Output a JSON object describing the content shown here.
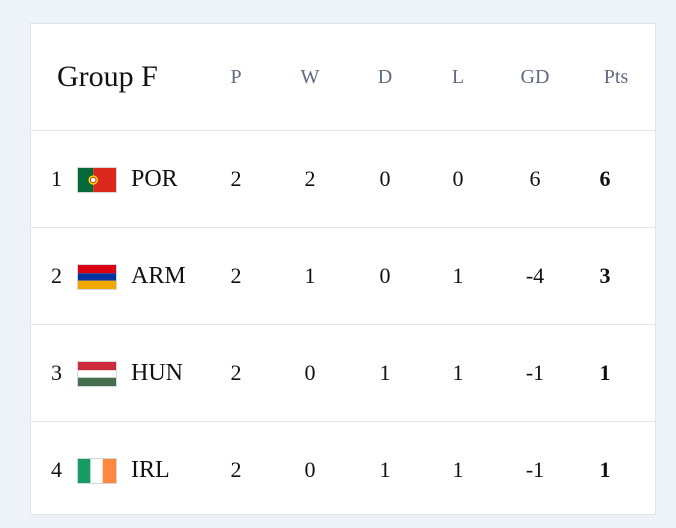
{
  "table": {
    "title": "Group F",
    "columns": [
      "P",
      "W",
      "D",
      "L",
      "GD",
      "Pts"
    ],
    "rows": [
      {
        "pos": "1",
        "flag_icon": "portugal-flag-icon",
        "team": "POR",
        "p": "2",
        "w": "2",
        "d": "0",
        "l": "0",
        "gd": "6",
        "pts": "6"
      },
      {
        "pos": "2",
        "flag_icon": "armenia-flag-icon",
        "team": "ARM",
        "p": "2",
        "w": "1",
        "d": "0",
        "l": "1",
        "gd": "-4",
        "pts": "3"
      },
      {
        "pos": "3",
        "flag_icon": "hungary-flag-icon",
        "team": "HUN",
        "p": "2",
        "w": "0",
        "d": "1",
        "l": "1",
        "gd": "-1",
        "pts": "1"
      },
      {
        "pos": "4",
        "flag_icon": "ireland-flag-icon",
        "team": "IRL",
        "p": "2",
        "w": "0",
        "d": "1",
        "l": "1",
        "gd": "-1",
        "pts": "1"
      }
    ]
  },
  "colors": {
    "page_background": "#eef2f9",
    "card_background": "#ffffff",
    "divider": "#dfe3ea",
    "column_header_text": "#5f6b84"
  }
}
